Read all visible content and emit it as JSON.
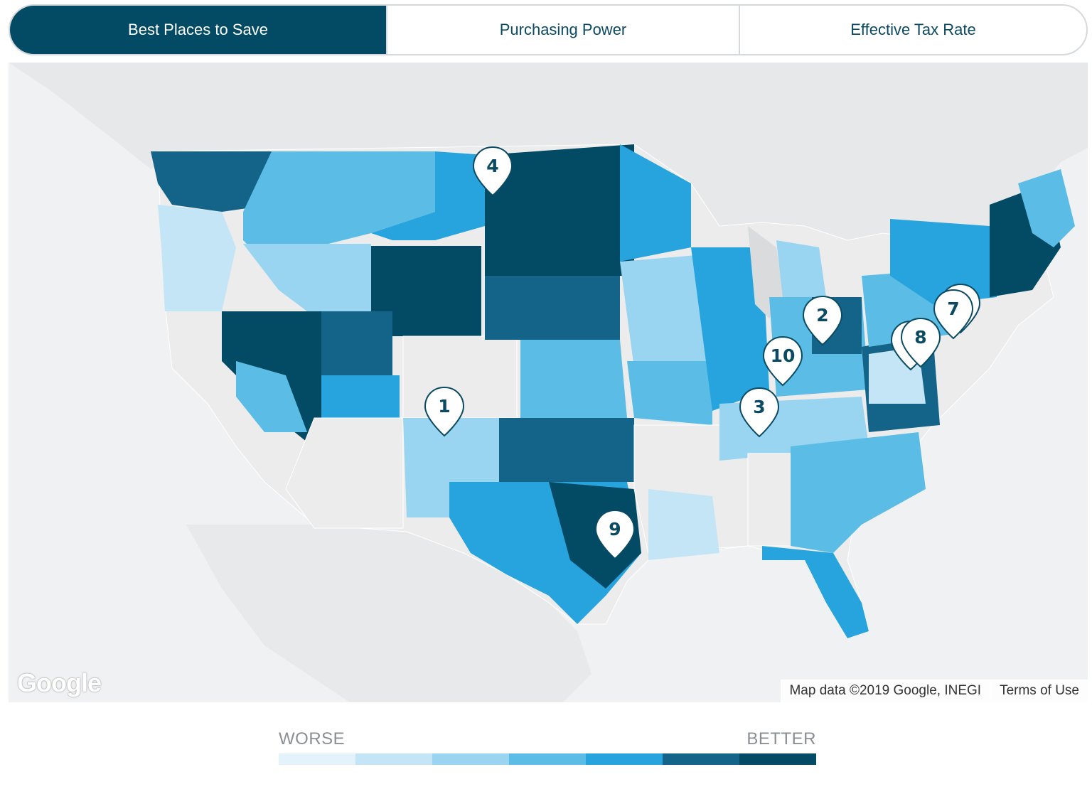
{
  "tabs": [
    {
      "label": "Best Places to Save",
      "active": true
    },
    {
      "label": "Purchasing Power",
      "active": false
    },
    {
      "label": "Effective Tax Rate",
      "active": false
    }
  ],
  "map": {
    "google_logo": "Google",
    "attribution": "Map data ©2019 Google, INEGI",
    "terms": "Terms of Use",
    "markers": [
      {
        "rank": "1"
      },
      {
        "rank": "2"
      },
      {
        "rank": "3"
      },
      {
        "rank": "4"
      },
      {
        "rank": "7"
      },
      {
        "rank": "8"
      },
      {
        "rank": "9"
      },
      {
        "rank": "10"
      }
    ]
  },
  "legend": {
    "worse": "WORSE",
    "better": "BETTER",
    "colors": [
      "#e3f2fb",
      "#c3e5f6",
      "#99d4f0",
      "#5bbde6",
      "#27a4de",
      "#136488",
      "#034a64"
    ]
  }
}
